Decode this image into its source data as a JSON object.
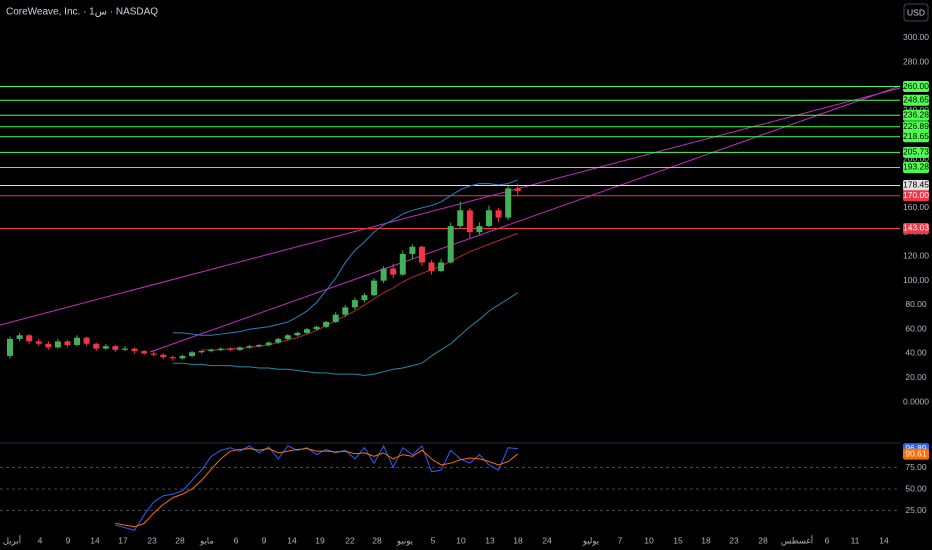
{
  "chart_data": {
    "type": "candlestick",
    "title": "CoreWeave, Inc. · 1س · NASDAQ",
    "currency": "USD",
    "up_color": "#43b05c",
    "down_color": "#f23645",
    "ylim": [
      -31.3,
      331.3
    ],
    "yticks": [
      {
        "value": 0,
        "label": "0.0000"
      },
      {
        "value": 20,
        "label": "20.00"
      },
      {
        "value": 40,
        "label": "40.00"
      },
      {
        "value": 60,
        "label": "60.00"
      },
      {
        "value": 80,
        "label": "80.00"
      },
      {
        "value": 100,
        "label": "100.00"
      },
      {
        "value": 120,
        "label": "120.00"
      },
      {
        "value": 140,
        "label": "140.00"
      },
      {
        "value": 160,
        "label": "160.00"
      },
      {
        "value": 180,
        "label": "180.00"
      },
      {
        "value": 200,
        "label": "200.00"
      },
      {
        "value": 220,
        "label": "220.00"
      },
      {
        "value": 240,
        "label": "240.00"
      },
      {
        "value": 260,
        "label": "260.00"
      },
      {
        "value": 280,
        "label": "280.00"
      },
      {
        "value": 300,
        "label": "300.00"
      }
    ],
    "xticks": [
      "أبريل",
      "4",
      "9",
      "14",
      "17",
      "23",
      "28",
      "مايو",
      "6",
      "9",
      "14",
      "19",
      "22",
      "28",
      "يونيو",
      "5",
      "10",
      "13",
      "18",
      "24",
      "يوليو",
      "7",
      "10",
      "15",
      "18",
      "23",
      "28",
      "أغسطس",
      "6",
      "11",
      "14"
    ],
    "open": [
      38,
      52,
      55,
      50,
      48,
      45,
      50,
      47,
      53,
      48,
      44,
      46,
      43,
      44,
      42,
      40,
      39,
      37,
      36,
      38,
      41,
      42,
      43,
      44,
      43,
      45,
      46,
      47,
      49,
      52,
      55,
      57,
      60,
      62,
      66,
      72,
      78,
      84,
      88,
      100,
      110,
      105,
      122,
      128,
      115,
      108,
      115,
      145,
      158,
      140,
      145,
      158,
      152,
      176
    ],
    "high": [
      54,
      57,
      56,
      52,
      50,
      52,
      51,
      55,
      54,
      49,
      48,
      47,
      46,
      45,
      43,
      42,
      40,
      38,
      39,
      42,
      43,
      44,
      45,
      45,
      46,
      47,
      48,
      50,
      53,
      56,
      58,
      61,
      63,
      67,
      74,
      80,
      86,
      90,
      102,
      112,
      114,
      125,
      130,
      129,
      117,
      118,
      148,
      165,
      160,
      148,
      162,
      160,
      178,
      180
    ],
    "low": [
      36,
      50,
      48,
      46,
      43,
      44,
      45,
      46,
      46,
      42,
      43,
      41,
      42,
      40,
      39,
      38,
      35,
      34,
      35,
      37,
      40,
      41,
      42,
      42,
      42,
      44,
      45,
      46,
      48,
      51,
      54,
      56,
      59,
      61,
      65,
      70,
      76,
      82,
      87,
      98,
      102,
      104,
      118,
      112,
      105,
      107,
      114,
      143,
      135,
      138,
      144,
      148,
      150,
      170
    ],
    "close": [
      52,
      55,
      50,
      48,
      45,
      50,
      47,
      53,
      48,
      44,
      46,
      43,
      44,
      42,
      40,
      39,
      37,
      36,
      38,
      41,
      42,
      43,
      44,
      43,
      45,
      46,
      47,
      49,
      52,
      55,
      57,
      60,
      62,
      66,
      72,
      78,
      84,
      88,
      100,
      110,
      105,
      122,
      128,
      115,
      108,
      115,
      145,
      158,
      140,
      145,
      158,
      152,
      176,
      174
    ],
    "overlays": [
      {
        "color": "#2f7fc1",
        "values": [
          null,
          null,
          null,
          null,
          null,
          null,
          null,
          null,
          null,
          null,
          null,
          null,
          null,
          null,
          null,
          null,
          null,
          57,
          57,
          56,
          55,
          55,
          56,
          57,
          58,
          60,
          61,
          62,
          64,
          66,
          70,
          75,
          82,
          92,
          102,
          115,
          125,
          132,
          140,
          146,
          150,
          155,
          158,
          160,
          162,
          165,
          170,
          175,
          178,
          180,
          180,
          179,
          180,
          183
        ]
      },
      {
        "color": "#1e8ca8",
        "values": [
          null,
          null,
          null,
          null,
          null,
          null,
          null,
          null,
          null,
          null,
          null,
          null,
          null,
          null,
          null,
          null,
          null,
          32,
          32,
          31,
          31,
          30,
          30,
          30,
          29,
          29,
          28,
          28,
          27,
          27,
          26,
          25,
          24,
          24,
          23,
          23,
          23,
          22,
          23,
          25,
          27,
          28,
          30,
          32,
          38,
          43,
          48,
          55,
          62,
          68,
          75,
          80,
          85,
          90
        ]
      },
      {
        "color": "#b22833",
        "values": [
          null,
          null,
          null,
          null,
          null,
          null,
          null,
          null,
          null,
          null,
          null,
          null,
          null,
          null,
          null,
          null,
          null,
          null,
          null,
          null,
          43,
          43,
          43,
          44,
          44,
          45,
          46,
          47,
          49,
          51,
          53,
          56,
          59,
          63,
          67,
          71,
          75,
          80,
          85,
          90,
          94,
          99,
          103,
          106,
          109,
          112,
          116,
          120,
          124,
          127,
          130,
          133,
          136,
          139
        ]
      }
    ],
    "levels": [
      {
        "value": 260,
        "label": "260.00",
        "color": "#4cff4c"
      },
      {
        "value": 248.65,
        "label": "248.65",
        "color": "#4cff4c"
      },
      {
        "value": 236.28,
        "label": "236.28",
        "color": "#4cff4c"
      },
      {
        "value": 226.89,
        "label": "226.89",
        "color": "#4cff4c"
      },
      {
        "value": 218.65,
        "label": "218.65",
        "color": "#4cff4c"
      },
      {
        "value": 205.73,
        "label": "205.73",
        "color": "#4cff4c"
      },
      {
        "value": 193.28,
        "label": "193.28",
        "color": "#4cff4c"
      },
      {
        "value": 178.45,
        "label": "178.45",
        "color": "#e0e0e0"
      },
      {
        "value": 170,
        "label": "170.00",
        "color": "#f23645"
      },
      {
        "value": 143.03,
        "label": "143.03",
        "color": "#f23645"
      }
    ],
    "oscillator": {
      "ylim": [
        0,
        100
      ],
      "yticks": [
        {
          "value": 25,
          "label": "25.00"
        },
        {
          "value": 50,
          "label": "50.00"
        },
        {
          "value": 75,
          "label": "75.00"
        }
      ],
      "series": [
        {
          "color": "#2962ff",
          "values": [
            null,
            null,
            null,
            null,
            null,
            null,
            null,
            null,
            null,
            null,
            null,
            8,
            5,
            2,
            20,
            35,
            42,
            44,
            48,
            60,
            72,
            88,
            95,
            98,
            94,
            100,
            92,
            99,
            85,
            100,
            95,
            98,
            90,
            96,
            92,
            95,
            85,
            98,
            80,
            100,
            75,
            98,
            90,
            100,
            70,
            72,
            95,
            85,
            80,
            90,
            78,
            72,
            98,
            96.89
          ]
        },
        {
          "color": "#ff6d00",
          "values": [
            null,
            null,
            null,
            null,
            null,
            null,
            null,
            null,
            null,
            null,
            null,
            10,
            8,
            6,
            10,
            22,
            32,
            40,
            44,
            50,
            60,
            73,
            85,
            94,
            96,
            97,
            95,
            97,
            92,
            94,
            96,
            97,
            94,
            94,
            93,
            94,
            91,
            92,
            88,
            92,
            85,
            90,
            88,
            95,
            85,
            78,
            80,
            84,
            86,
            85,
            82,
            78,
            82,
            90.61
          ]
        }
      ]
    }
  }
}
